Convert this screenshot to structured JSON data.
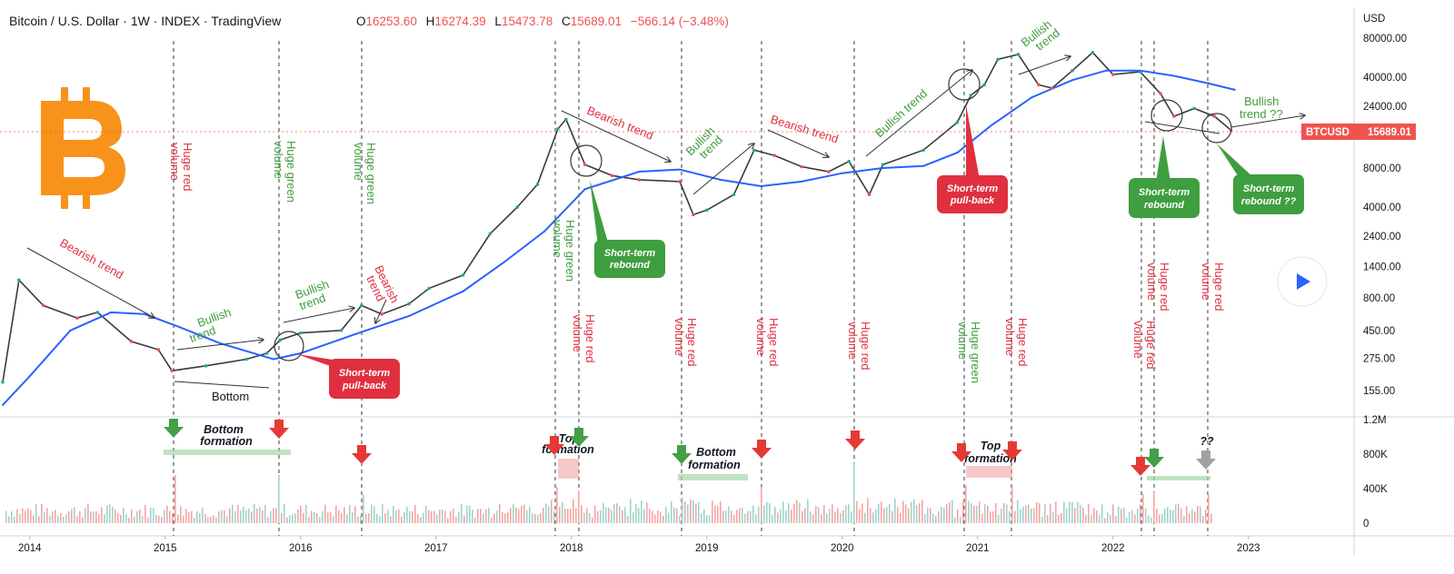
{
  "header": {
    "title": "Bitcoin / U.S. Dollar · 1W · INDEX · TradingView",
    "open_label": "O",
    "open": "16253.60",
    "high_label": "H",
    "high": "16274.39",
    "low_label": "L",
    "low": "15473.78",
    "close_label": "C",
    "close": "15689.01",
    "change": "−566.14 (−3.48%)"
  },
  "price_tag": {
    "symbol": "BTCUSD",
    "value": "15689.01"
  },
  "colors": {
    "up": "#26a69a",
    "down": "#ef5350",
    "ma": "#2962ff",
    "bull": "#3f9e3f",
    "bear": "#e0303f",
    "btc_logo": "#f7931a"
  },
  "chart_data": [
    {
      "type": "line",
      "title": "Bitcoin / U.S. Dollar · 1W · INDEX · TradingView",
      "y_scale": "log",
      "currency": "USD",
      "y_ticks": [
        155,
        275,
        450,
        800,
        1400,
        2400,
        4000,
        8000,
        14000,
        24000,
        40000,
        80000
      ],
      "y_tick_labels": [
        "155.00",
        "275.00",
        "450.00",
        "800.00",
        "1400.00",
        "2400.00",
        "4000.00",
        "8000.00",
        "",
        "24000.00",
        "40000.00",
        "80000.00"
      ],
      "x_labels": [
        "2014",
        "2015",
        "2016",
        "2017",
        "2018",
        "2019",
        "2020",
        "2021",
        "2022",
        "2023"
      ],
      "series": [
        {
          "name": "BTCUSD",
          "x": [
            2013.8,
            2013.92,
            2014.1,
            2014.35,
            2014.5,
            2014.75,
            2014.95,
            2015.05,
            2015.3,
            2015.6,
            2015.75,
            2015.85,
            2016.0,
            2016.3,
            2016.45,
            2016.6,
            2016.8,
            2016.95,
            2017.2,
            2017.4,
            2017.6,
            2017.75,
            2017.9,
            2017.96,
            2018.1,
            2018.3,
            2018.5,
            2018.8,
            2018.9,
            2019.0,
            2019.2,
            2019.35,
            2019.5,
            2019.7,
            2019.9,
            2020.05,
            2020.2,
            2020.3,
            2020.6,
            2020.85,
            2020.95,
            2021.05,
            2021.15,
            2021.3,
            2021.45,
            2021.55,
            2021.7,
            2021.85,
            2022.0,
            2022.2,
            2022.35,
            2022.45,
            2022.6,
            2022.75,
            2022.87
          ],
          "values": [
            180,
            1100,
            700,
            560,
            620,
            370,
            320,
            220,
            240,
            270,
            300,
            380,
            430,
            450,
            700,
            600,
            720,
            950,
            1200,
            2500,
            4000,
            6000,
            16000,
            19000,
            8500,
            7000,
            6500,
            6300,
            3500,
            3800,
            5000,
            11000,
            10000,
            8200,
            7500,
            9000,
            5000,
            8500,
            11000,
            18000,
            29000,
            35000,
            55000,
            60000,
            35000,
            33000,
            45000,
            62000,
            42000,
            44000,
            30000,
            20000,
            23000,
            20000,
            15689
          ]
        },
        {
          "name": "Moving average",
          "x": [
            2013.8,
            2014.0,
            2014.3,
            2014.6,
            2014.85,
            2015.1,
            2015.4,
            2015.7,
            2015.8,
            2016.0,
            2016.4,
            2016.8,
            2017.2,
            2017.5,
            2017.8,
            2018.1,
            2018.5,
            2018.8,
            2019.1,
            2019.4,
            2019.7,
            2020.0,
            2020.3,
            2020.6,
            2020.85,
            2021.1,
            2021.4,
            2021.7,
            2021.95,
            2022.2,
            2022.45,
            2022.7,
            2022.9
          ],
          "values": [
            120,
            200,
            450,
            620,
            600,
            480,
            360,
            290,
            270,
            300,
            420,
            580,
            900,
            1500,
            2600,
            5500,
            7500,
            7800,
            6500,
            5800,
            6300,
            7300,
            8000,
            8300,
            10500,
            17000,
            28000,
            38000,
            45000,
            45000,
            41000,
            36000,
            32000
          ]
        }
      ],
      "annotations": {
        "trends": [
          {
            "label": "Bearish trend",
            "kind": "bear"
          },
          {
            "label": "Bullish trend",
            "kind": "bull"
          },
          {
            "label": "Bullish trend",
            "kind": "bull"
          },
          {
            "label": "Bearish trend",
            "kind": "bear"
          },
          {
            "label": "Bearish trend",
            "kind": "bear"
          },
          {
            "label": "Bullish trend",
            "kind": "bull"
          },
          {
            "label": "Bearish trend",
            "kind": "bear"
          },
          {
            "label": "Bullish trend",
            "kind": "bull"
          },
          {
            "label": "Bullish trend",
            "kind": "bull"
          },
          {
            "label": "Bullish trend ??",
            "kind": "bull"
          }
        ],
        "bottom_label": "Bottom",
        "volume_notes": [
          {
            "label": "Huge red volume",
            "kind": "bear"
          },
          {
            "label": "Huge green volume",
            "kind": "bull"
          },
          {
            "label": "Huge green volume",
            "kind": "bull"
          },
          {
            "label": "Huge green volume",
            "kind": "bull"
          },
          {
            "label": "Huge red volume",
            "kind": "bear"
          },
          {
            "label": "Huge red volume",
            "kind": "bear"
          },
          {
            "label": "Huge red volume",
            "kind": "bear"
          },
          {
            "label": "Huge red volume",
            "kind": "bear"
          },
          {
            "label": "Huge green volume",
            "kind": "bull"
          },
          {
            "label": "Huge red volume",
            "kind": "bear"
          },
          {
            "label": "Huge red volume",
            "kind": "bear"
          },
          {
            "label": "Huge red volume",
            "kind": "bear"
          },
          {
            "label": "Huge red volume",
            "kind": "bear"
          }
        ],
        "callouts": [
          {
            "label": "Short-term pull-back",
            "kind": "bear"
          },
          {
            "label": "Short-term rebound",
            "kind": "bull"
          },
          {
            "label": "Short-term pull-back",
            "kind": "bear"
          },
          {
            "label": "Short-term rebound",
            "kind": "bull"
          },
          {
            "label": "Short-term rebound ??",
            "kind": "bull"
          }
        ]
      }
    },
    {
      "type": "bar",
      "title": "Volume",
      "y_ticks": [
        0,
        400000,
        800000,
        1200000
      ],
      "y_tick_labels": [
        "0",
        "400K",
        "800K",
        "1.2M"
      ],
      "formations": [
        {
          "label": "Bottom formation",
          "kind": "bull"
        },
        {
          "label": "Top formation",
          "kind": "bear"
        },
        {
          "label": "Bottom formation",
          "kind": "bull"
        },
        {
          "label": "Top formation",
          "kind": "bear"
        }
      ],
      "question_mark": "??"
    }
  ]
}
